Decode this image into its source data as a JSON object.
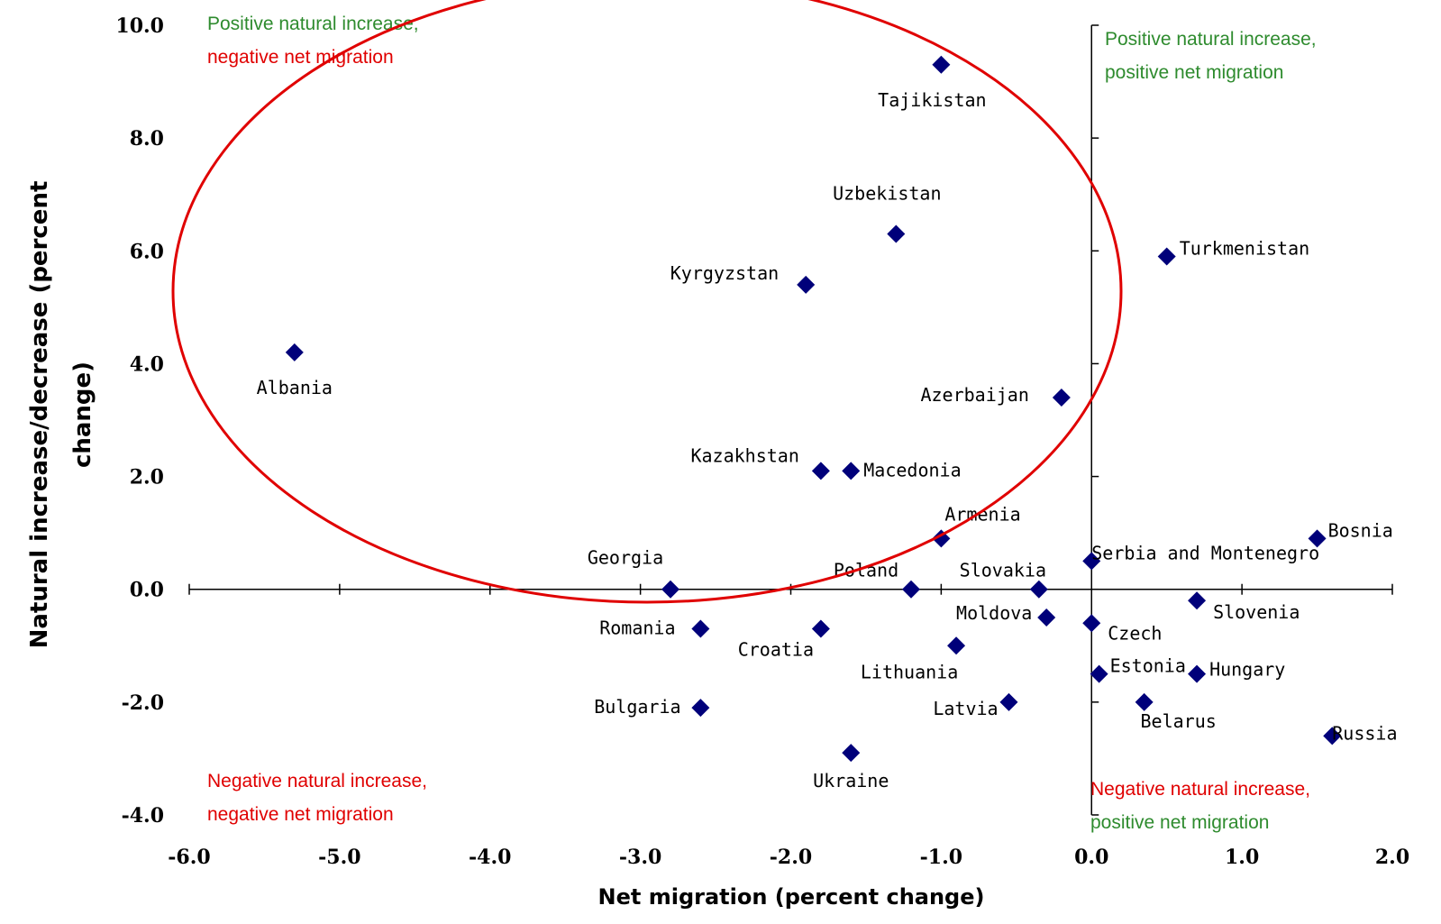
{
  "colors": {
    "marker": "#00007a",
    "green": "#2e8b2e",
    "red": "#e00000",
    "axis": "#000000",
    "highlight_ellipse": "#e00000"
  },
  "chart_data": {
    "type": "scatter",
    "title": "",
    "xlabel": "Net migration (percent change)",
    "ylabel": "Natural increase/decrease (percent change)",
    "xlim": [
      -6.0,
      2.0
    ],
    "ylim": [
      -4.0,
      10.0
    ],
    "x_ticks": [
      "-6.0",
      "-5.0",
      "-4.0",
      "-3.0",
      "-2.0",
      "-1.0",
      "0.0",
      "1.0",
      "2.0"
    ],
    "y_ticks": [
      "10.0",
      "8.0",
      "6.0",
      "4.0",
      "2.0",
      "0.0",
      "-2.0",
      "-4.0"
    ],
    "grid": false,
    "marker": "diamond",
    "points": [
      {
        "label": "Tajikistan",
        "x": -1.0,
        "y": 9.3
      },
      {
        "label": "Uzbekistan",
        "x": -1.3,
        "y": 6.3
      },
      {
        "label": "Kyrgyzstan",
        "x": -1.9,
        "y": 5.4
      },
      {
        "label": "Turkmenistan",
        "x": 0.5,
        "y": 5.9
      },
      {
        "label": "Albania",
        "x": -5.3,
        "y": 4.2
      },
      {
        "label": "Azerbaijan",
        "x": -0.2,
        "y": 3.4
      },
      {
        "label": "Kazakhstan",
        "x": -1.8,
        "y": 2.1
      },
      {
        "label": "Macedonia",
        "x": -1.6,
        "y": 2.1
      },
      {
        "label": "Armenia",
        "x": -1.0,
        "y": 0.9
      },
      {
        "label": "Bosnia",
        "x": 1.5,
        "y": 0.9
      },
      {
        "label": "Georgia",
        "x": -2.8,
        "y": 0.0
      },
      {
        "label": "Poland",
        "x": -1.2,
        "y": 0.0
      },
      {
        "label": "Slovakia",
        "x": -0.35,
        "y": 0.0
      },
      {
        "label": "Serbia and Montenegro",
        "x": 0.0,
        "y": 0.5
      },
      {
        "label": "Slovenia",
        "x": 0.7,
        "y": -0.2
      },
      {
        "label": "Moldova",
        "x": -0.3,
        "y": -0.5
      },
      {
        "label": "Czech",
        "x": 0.0,
        "y": -0.6
      },
      {
        "label": "Romania",
        "x": -2.6,
        "y": -0.7
      },
      {
        "label": "Croatia",
        "x": -1.8,
        "y": -0.7
      },
      {
        "label": "Lithuania",
        "x": -0.9,
        "y": -1.0
      },
      {
        "label": "Estonia",
        "x": 0.05,
        "y": -1.5
      },
      {
        "label": "Hungary",
        "x": 0.7,
        "y": -1.5
      },
      {
        "label": "Latvia",
        "x": -0.55,
        "y": -2.0
      },
      {
        "label": "Belarus",
        "x": 0.35,
        "y": -2.0
      },
      {
        "label": "Bulgaria",
        "x": -2.6,
        "y": -2.1
      },
      {
        "label": "Russia",
        "x": 1.6,
        "y": -2.6
      },
      {
        "label": "Ukraine",
        "x": -1.6,
        "y": -2.9
      }
    ],
    "annotations": {
      "top_left": {
        "line1": "Positive natural increase,",
        "line2": "negative net migration"
      },
      "top_right": {
        "line1": "Positive natural increase,",
        "line2": "positive net migration"
      },
      "bottom_left": {
        "line1": "Negative natural increase,",
        "line2": "negative net migration"
      },
      "bottom_right": {
        "line1": "Negative natural increase,",
        "line2": "positive net migration"
      }
    }
  }
}
